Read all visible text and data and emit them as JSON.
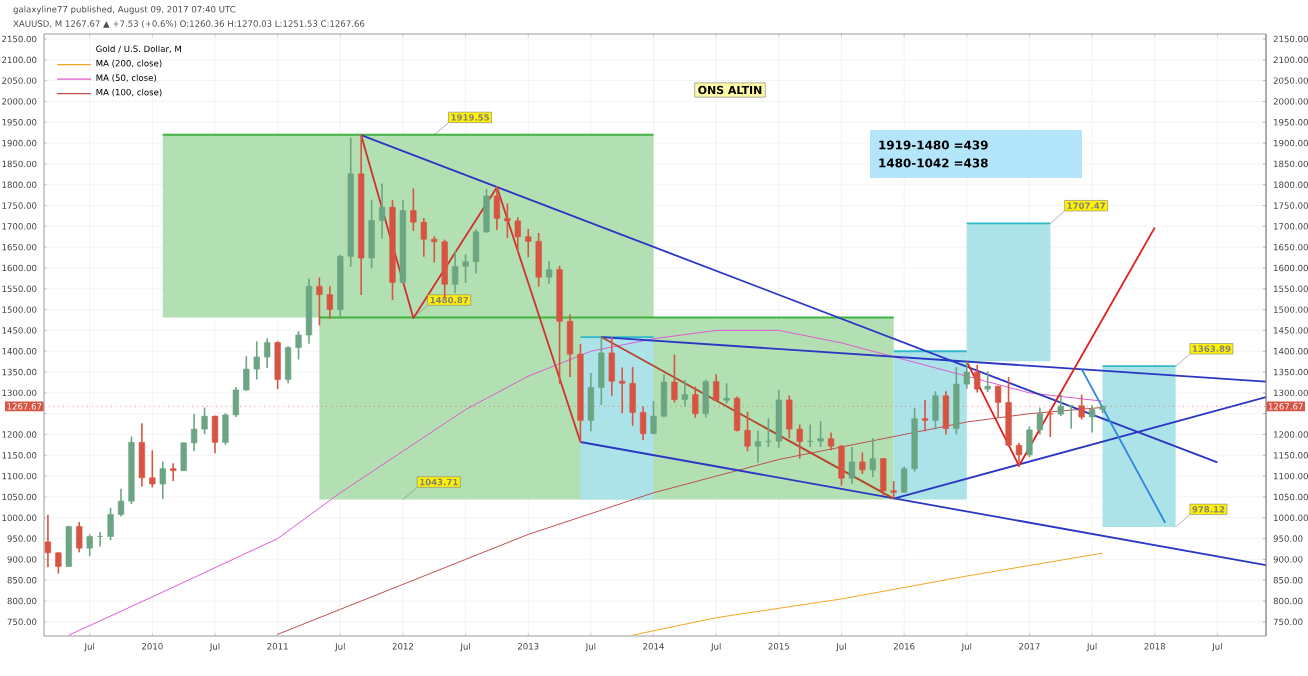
{
  "chart_data": {
    "type": "candlestick",
    "legend_title": "Gold / U.S. Dollar, M",
    "annotations": [
      "galaxyline77 published, August 09, 2017 07:40 UTC",
      "XAUUSD, M 1267.67 ▲ +7.53 (+0.6%) O:1260.36 H:1270.03 L:1251.53 C:1267.66",
      "ONS ALTIN",
      "1919-1480 =439",
      "1480-1042 =438",
      {
        "text": "1919.55",
        "x": "2012-04",
        "y": 1919.55
      },
      {
        "text": "1480.87",
        "x": "2012-02",
        "y": 1480.87
      },
      {
        "text": "1043.71",
        "x": "2012-01",
        "y": 1043.71
      },
      {
        "text": "1707.47",
        "x": "2017-03",
        "y": 1707.47
      },
      {
        "text": "1363.89",
        "x": "2018-03",
        "y": 1363.89
      },
      {
        "text": "978.12",
        "x": "2018-03",
        "y": 978.12
      }
    ],
    "x": [
      "2009-03",
      "2009-04",
      "2009-05",
      "2009-06",
      "2009-07",
      "2009-08",
      "2009-09",
      "2009-10",
      "2009-11",
      "2009-12",
      "2010-01",
      "2010-02",
      "2010-03",
      "2010-04",
      "2010-05",
      "2010-06",
      "2010-07",
      "2010-08",
      "2010-09",
      "2010-10",
      "2010-11",
      "2010-12",
      "2011-01",
      "2011-02",
      "2011-03",
      "2011-04",
      "2011-05",
      "2011-06",
      "2011-07",
      "2011-08",
      "2011-09",
      "2011-10",
      "2011-11",
      "2011-12",
      "2012-01",
      "2012-02",
      "2012-03",
      "2012-04",
      "2012-05",
      "2012-06",
      "2012-07",
      "2012-08",
      "2012-09",
      "2012-10",
      "2012-11",
      "2012-12",
      "2013-01",
      "2013-02",
      "2013-03",
      "2013-04",
      "2013-05",
      "2013-06",
      "2013-07",
      "2013-08",
      "2013-09",
      "2013-10",
      "2013-11",
      "2013-12",
      "2014-01",
      "2014-02",
      "2014-03",
      "2014-04",
      "2014-05",
      "2014-06",
      "2014-07",
      "2014-08",
      "2014-09",
      "2014-10",
      "2014-11",
      "2014-12",
      "2015-01",
      "2015-02",
      "2015-03",
      "2015-04",
      "2015-05",
      "2015-06",
      "2015-07",
      "2015-08",
      "2015-09",
      "2015-10",
      "2015-11",
      "2015-12",
      "2016-01",
      "2016-02",
      "2016-03",
      "2016-04",
      "2016-05",
      "2016-06",
      "2016-07",
      "2016-08",
      "2016-09",
      "2016-10",
      "2016-11",
      "2016-12",
      "2017-01",
      "2017-02",
      "2017-03",
      "2017-04",
      "2017-05",
      "2017-06",
      "2017-07",
      "2017-08"
    ],
    "ohlc": [
      [
        942,
        1007,
        881,
        916
      ],
      [
        916,
        917,
        866,
        883
      ],
      [
        883,
        981,
        883,
        979
      ],
      [
        979,
        990,
        917,
        927
      ],
      [
        927,
        960,
        908,
        955
      ],
      [
        955,
        966,
        931,
        955
      ],
      [
        955,
        1024,
        946,
        1008
      ],
      [
        1008,
        1070,
        1003,
        1040
      ],
      [
        1040,
        1195,
        1033,
        1181
      ],
      [
        1181,
        1227,
        1075,
        1096
      ],
      [
        1096,
        1162,
        1073,
        1081
      ],
      [
        1081,
        1135,
        1045,
        1118
      ],
      [
        1118,
        1131,
        1088,
        1113
      ],
      [
        1113,
        1181,
        1113,
        1180
      ],
      [
        1180,
        1249,
        1160,
        1213
      ],
      [
        1213,
        1265,
        1201,
        1244
      ],
      [
        1244,
        1245,
        1155,
        1181
      ],
      [
        1181,
        1251,
        1175,
        1247
      ],
      [
        1247,
        1314,
        1242,
        1307
      ],
      [
        1307,
        1388,
        1305,
        1357
      ],
      [
        1357,
        1424,
        1332,
        1386
      ],
      [
        1386,
        1431,
        1360,
        1421
      ],
      [
        1421,
        1424,
        1309,
        1332
      ],
      [
        1332,
        1412,
        1323,
        1409
      ],
      [
        1409,
        1448,
        1380,
        1439
      ],
      [
        1439,
        1575,
        1418,
        1556
      ],
      [
        1556,
        1577,
        1462,
        1536
      ],
      [
        1536,
        1556,
        1478,
        1500
      ],
      [
        1500,
        1632,
        1480,
        1628
      ],
      [
        1628,
        1913,
        1603,
        1826
      ],
      [
        1826,
        1921,
        1535,
        1624
      ],
      [
        1624,
        1764,
        1599,
        1714
      ],
      [
        1714,
        1803,
        1670,
        1746
      ],
      [
        1746,
        1763,
        1523,
        1565
      ],
      [
        1565,
        1764,
        1563,
        1738
      ],
      [
        1738,
        1791,
        1689,
        1710
      ],
      [
        1710,
        1720,
        1627,
        1669
      ],
      [
        1669,
        1676,
        1613,
        1663
      ],
      [
        1663,
        1668,
        1527,
        1561
      ],
      [
        1561,
        1641,
        1540,
        1604
      ],
      [
        1604,
        1633,
        1564,
        1615
      ],
      [
        1615,
        1693,
        1587,
        1687
      ],
      [
        1687,
        1790,
        1684,
        1773
      ],
      [
        1773,
        1796,
        1691,
        1719
      ],
      [
        1719,
        1755,
        1672,
        1713
      ],
      [
        1713,
        1722,
        1636,
        1675
      ],
      [
        1675,
        1694,
        1626,
        1664
      ],
      [
        1664,
        1684,
        1555,
        1578
      ],
      [
        1578,
        1617,
        1562,
        1596
      ],
      [
        1596,
        1605,
        1322,
        1472
      ],
      [
        1472,
        1488,
        1338,
        1393
      ],
      [
        1393,
        1417,
        1180,
        1234
      ],
      [
        1234,
        1348,
        1208,
        1313
      ],
      [
        1313,
        1433,
        1271,
        1396
      ],
      [
        1396,
        1434,
        1293,
        1328
      ],
      [
        1328,
        1361,
        1251,
        1323
      ],
      [
        1323,
        1362,
        1221,
        1253
      ],
      [
        1253,
        1267,
        1187,
        1202
      ],
      [
        1202,
        1280,
        1202,
        1244
      ],
      [
        1244,
        1345,
        1241,
        1326
      ],
      [
        1326,
        1392,
        1277,
        1284
      ],
      [
        1284,
        1331,
        1268,
        1296
      ],
      [
        1296,
        1315,
        1240,
        1250
      ],
      [
        1250,
        1332,
        1241,
        1327
      ],
      [
        1327,
        1345,
        1281,
        1282
      ],
      [
        1282,
        1323,
        1274,
        1287
      ],
      [
        1287,
        1291,
        1207,
        1210
      ],
      [
        1210,
        1255,
        1160,
        1172
      ],
      [
        1172,
        1209,
        1132,
        1183
      ],
      [
        1183,
        1239,
        1170,
        1184
      ],
      [
        1184,
        1307,
        1168,
        1283
      ],
      [
        1283,
        1294,
        1191,
        1213
      ],
      [
        1213,
        1224,
        1142,
        1183
      ],
      [
        1183,
        1224,
        1170,
        1184
      ],
      [
        1184,
        1232,
        1170,
        1190
      ],
      [
        1190,
        1205,
        1162,
        1172
      ],
      [
        1172,
        1175,
        1077,
        1095
      ],
      [
        1095,
        1170,
        1081,
        1134
      ],
      [
        1134,
        1157,
        1105,
        1115
      ],
      [
        1115,
        1191,
        1098,
        1142
      ],
      [
        1142,
        1143,
        1053,
        1065
      ],
      [
        1065,
        1088,
        1046,
        1061
      ],
      [
        1061,
        1123,
        1060,
        1118
      ],
      [
        1118,
        1263,
        1111,
        1238
      ],
      [
        1238,
        1283,
        1208,
        1234
      ],
      [
        1234,
        1304,
        1212,
        1293
      ],
      [
        1293,
        1304,
        1200,
        1214
      ],
      [
        1214,
        1362,
        1200,
        1321
      ],
      [
        1321,
        1375,
        1310,
        1350
      ],
      [
        1350,
        1367,
        1301,
        1309
      ],
      [
        1309,
        1352,
        1302,
        1316
      ],
      [
        1316,
        1317,
        1241,
        1277
      ],
      [
        1277,
        1338,
        1171,
        1174
      ],
      [
        1174,
        1180,
        1122,
        1151
      ],
      [
        1151,
        1219,
        1146,
        1211
      ],
      [
        1211,
        1264,
        1200,
        1250
      ],
      [
        1250,
        1261,
        1194,
        1249
      ],
      [
        1249,
        1296,
        1244,
        1268
      ],
      [
        1268,
        1269,
        1214,
        1269
      ],
      [
        1269,
        1296,
        1236,
        1242
      ],
      [
        1242,
        1270,
        1205,
        1260
      ],
      [
        1260.36,
        1270.03,
        1251.53,
        1267.66
      ]
    ],
    "colors": [
      "#d75442",
      "#d75442",
      "#6ba583",
      "#d75442",
      "#6ba583",
      "#6ba583",
      "#6ba583",
      "#6ba583",
      "#6ba583",
      "#d75442",
      "#d75442",
      "#6ba583",
      "#d75442",
      "#6ba583",
      "#6ba583",
      "#6ba583",
      "#d75442",
      "#6ba583",
      "#6ba583",
      "#6ba583",
      "#6ba583",
      "#6ba583",
      "#d75442",
      "#6ba583",
      "#6ba583",
      "#6ba583",
      "#d75442",
      "#d75442",
      "#6ba583",
      "#6ba583",
      "#d75442",
      "#6ba583",
      "#6ba583",
      "#d75442",
      "#6ba583",
      "#d75442",
      "#d75442",
      "#d75442",
      "#d75442",
      "#6ba583",
      "#6ba583",
      "#6ba583",
      "#6ba583",
      "#d75442",
      "#d75442",
      "#d75442",
      "#d75442",
      "#d75442",
      "#6ba583",
      "#d75442",
      "#d75442",
      "#d75442",
      "#6ba583",
      "#6ba583",
      "#d75442",
      "#d75442",
      "#d75442",
      "#d75442",
      "#6ba583",
      "#6ba583",
      "#d75442",
      "#6ba583",
      "#d75442",
      "#6ba583",
      "#d75442",
      "#6ba583",
      "#d75442",
      "#d75442",
      "#6ba583",
      "#6ba583",
      "#6ba583",
      "#d75442",
      "#d75442",
      "#6ba583",
      "#6ba583",
      "#d75442",
      "#d75442",
      "#6ba583",
      "#d75442",
      "#6ba583",
      "#d75442",
      "#d75442",
      "#6ba583",
      "#6ba583",
      "#d75442",
      "#6ba583",
      "#d75442",
      "#6ba583",
      "#6ba583",
      "#d75442",
      "#6ba583",
      "#d75442",
      "#d75442",
      "#d75442",
      "#6ba583",
      "#6ba583",
      "#d75442",
      "#6ba583",
      "#6ba583",
      "#d75442",
      "#6ba583",
      "#6ba583"
    ],
    "series": [
      {
        "type": "line",
        "color": "#3fb23f",
        "x": [
          "2010-02",
          "2014-01"
        ],
        "values": [
          1920,
          1920
        ],
        "upper": [
          1920,
          1920
        ],
        "lower": [
          1481,
          1481
        ]
      },
      {
        "type": "line",
        "color": "#3fb23f",
        "x": [
          "2011-05",
          "2015-12"
        ],
        "values": [
          1481,
          1481
        ],
        "upper": [
          1481,
          1481
        ],
        "lower": [
          1044,
          1044
        ]
      },
      {
        "type": "line",
        "color": "#2fb8c8",
        "x": [
          "2013-06",
          "2014-01"
        ],
        "values": [
          1434,
          1434
        ],
        "upper": [
          1434,
          1434
        ],
        "lower": [
          1044,
          1044
        ]
      },
      {
        "type": "line",
        "color": "#2fb8c8",
        "x": [
          "2015-12",
          "2016-07"
        ],
        "values": [
          1400,
          1400
        ],
        "upper": [
          1400,
          1400
        ],
        "lower": [
          1044,
          1044
        ]
      },
      {
        "type": "line",
        "color": "#2fb8c8",
        "x": [
          "2016-07",
          "2017-03"
        ],
        "values": [
          1707,
          1707
        ],
        "upper": [
          1707,
          1707
        ],
        "lower": [
          1376,
          1376
        ]
      },
      {
        "type": "line",
        "color": "#2fb8c8",
        "x": [
          "2017-08",
          "2018-03"
        ],
        "values": [
          1364,
          1364
        ],
        "upper": [
          1364,
          1364
        ],
        "lower": [
          978,
          978
        ]
      },
      {
        "type": "line",
        "name": "MA (200, close)",
        "color": "#f5a623",
        "x": [
          "2013-11",
          "2014-07",
          "2015-07",
          "2016-07",
          "2017-08"
        ],
        "values": [
          718,
          760,
          805,
          860,
          915
        ]
      },
      {
        "type": "line",
        "name": "MA (50, close)",
        "color": "#e05ad0",
        "x": [
          "2009-05",
          "2010-01",
          "2010-07",
          "2011-01",
          "2011-07",
          "2012-01",
          "2012-07",
          "2013-01",
          "2013-07",
          "2014-01",
          "2014-07",
          "2015-01",
          "2015-07",
          "2016-01",
          "2016-07",
          "2017-01",
          "2017-08"
        ],
        "values": [
          718,
          810,
          880,
          950,
          1060,
          1160,
          1260,
          1340,
          1400,
          1430,
          1450,
          1450,
          1420,
          1380,
          1340,
          1300,
          1280
        ]
      },
      {
        "type": "line",
        "name": "MA (100, close)",
        "color": "#c0504d",
        "x": [
          "2011-01",
          "2011-07",
          "2012-01",
          "2012-07",
          "2013-01",
          "2013-07",
          "2014-01",
          "2014-07",
          "2015-01",
          "2015-07",
          "2016-01",
          "2016-07",
          "2017-01",
          "2017-08"
        ],
        "values": [
          720,
          780,
          840,
          900,
          960,
          1010,
          1060,
          1100,
          1140,
          1170,
          1200,
          1230,
          1250,
          1265
        ]
      },
      {
        "type": "line",
        "color": "#2a36c4",
        "x": [
          "2011-09",
          "2018-07"
        ],
        "values": [
          1919,
          1133
        ]
      },
      {
        "type": "line",
        "color": "#2a36c4",
        "x": [
          "2013-08",
          "2018-11-21"
        ],
        "values": [
          1434,
          1327
        ]
      },
      {
        "type": "line",
        "color": "#2a36c4",
        "x": [
          "2013-06",
          "2018-11-21"
        ],
        "values": [
          1182,
          886
        ]
      },
      {
        "type": "line",
        "color": "#2a36c4",
        "x": [
          "2015-12",
          "2018-11-21"
        ],
        "values": [
          1046,
          1290
        ]
      },
      {
        "type": "line",
        "color": "#d32f2f",
        "x": [
          "2011-09",
          "2012-02",
          "2012-10",
          "2013-06"
        ],
        "values": [
          1919,
          1480,
          1794,
          1182
        ]
      },
      {
        "type": "line",
        "color": "#b5452b",
        "x": [
          "2013-08",
          "2015-12"
        ],
        "values": [
          1434,
          1046
        ]
      },
      {
        "type": "line",
        "color": "#e0201e",
        "x": [
          "2016-07",
          "2016-12",
          "2018-01"
        ],
        "values": [
          1375,
          1125,
          1697
        ]
      },
      {
        "type": "line",
        "color": "#2e86de",
        "x": [
          "2017-06",
          "2018-02"
        ],
        "values": [
          1357,
          988
        ]
      }
    ],
    "ref_lines": [
      {
        "axis": "y",
        "value": 1267.67,
        "label": "1267.67",
        "color": "#d75442",
        "line_style": "dotted"
      }
    ],
    "xlim": [
      "2009-02-20",
      "2018-11-21"
    ],
    "xticks": [
      {
        "value": "2009-07",
        "label": "Jul"
      },
      {
        "value": "2010-01",
        "label": "2010"
      },
      {
        "value": "2010-07",
        "label": "Jul"
      },
      {
        "value": "2011-01",
        "label": "2011"
      },
      {
        "value": "2011-07",
        "label": "Jul"
      },
      {
        "value": "2012-01",
        "label": "2012"
      },
      {
        "value": "2012-07",
        "label": "Jul"
      },
      {
        "value": "2013-01",
        "label": "2013"
      },
      {
        "value": "2013-07",
        "label": "Jul"
      },
      {
        "value": "2014-01",
        "label": "2014"
      },
      {
        "value": "2014-07",
        "label": "Jul"
      },
      {
        "value": "2015-01",
        "label": "2015"
      },
      {
        "value": "2015-07",
        "label": "Jul"
      },
      {
        "value": "2016-01",
        "label": "2016"
      },
      {
        "value": "2016-07",
        "label": "Jul"
      },
      {
        "value": "2017-01",
        "label": "2017"
      },
      {
        "value": "2017-07",
        "label": "Jul"
      },
      {
        "value": "2018-01",
        "label": "2018"
      },
      {
        "value": "2018-07",
        "label": "Jul"
      }
    ],
    "ylim": [
      716,
      2162
    ],
    "yticks": [
      {
        "value": 750,
        "label": "750.00"
      },
      {
        "value": 800,
        "label": "800.00"
      },
      {
        "value": 850,
        "label": "850.00"
      },
      {
        "value": 900,
        "label": "900.00"
      },
      {
        "value": 950,
        "label": "950.00"
      },
      {
        "value": 1000,
        "label": "1000.00"
      },
      {
        "value": 1050,
        "label": "1050.00"
      },
      {
        "value": 1100,
        "label": "1100.00"
      },
      {
        "value": 1150,
        "label": "1150.00"
      },
      {
        "value": 1200,
        "label": "1200.00"
      },
      {
        "value": 1250,
        "label": null
      },
      {
        "value": 1300,
        "label": "1300.00"
      },
      {
        "value": 1350,
        "label": "1350.00"
      },
      {
        "value": 1400,
        "label": "1400.00"
      },
      {
        "value": 1450,
        "label": "1450.00"
      },
      {
        "value": 1500,
        "label": "1500.00"
      },
      {
        "value": 1550,
        "label": "1550.00"
      },
      {
        "value": 1600,
        "label": "1600.00"
      },
      {
        "value": 1650,
        "label": "1650.00"
      },
      {
        "value": 1700,
        "label": "1700.00"
      },
      {
        "value": 1750,
        "label": "1750.00"
      },
      {
        "value": 1800,
        "label": "1800.00"
      },
      {
        "value": 1850,
        "label": "1850.00"
      },
      {
        "value": 1900,
        "label": "1900.00"
      },
      {
        "value": 1950,
        "label": "1950.00"
      },
      {
        "value": 2000,
        "label": "2000.00"
      },
      {
        "value": 2050,
        "label": "2050.00"
      },
      {
        "value": 2100,
        "label": "2100.00"
      },
      {
        "value": 2150,
        "label": "2150.00"
      }
    ],
    "y2lim": [
      716,
      2162
    ],
    "y2ticks": [
      {
        "value": 750,
        "label": "750.00"
      },
      {
        "value": 800,
        "label": "800.00"
      },
      {
        "value": 850,
        "label": "850.00"
      },
      {
        "value": 900,
        "label": "900.00"
      },
      {
        "value": 950,
        "label": "950.00"
      },
      {
        "value": 1000,
        "label": "1000.00"
      },
      {
        "value": 1050,
        "label": "1050.00"
      },
      {
        "value": 1100,
        "label": "1100.00"
      },
      {
        "value": 1150,
        "label": "1150.00"
      },
      {
        "value": 1200,
        "label": "1200.00"
      },
      {
        "value": 1250,
        "label": null
      },
      {
        "value": 1300,
        "label": "1300.00"
      },
      {
        "value": 1350,
        "label": "1350.00"
      },
      {
        "value": 1400,
        "label": "1400.00"
      },
      {
        "value": 1450,
        "label": "1450.00"
      },
      {
        "value": 1500,
        "label": "1500.00"
      },
      {
        "value": 1550,
        "label": "1550.00"
      },
      {
        "value": 1600,
        "label": "1600.00"
      },
      {
        "value": 1650,
        "label": "1650.00"
      },
      {
        "value": 1700,
        "label": "1700.00"
      },
      {
        "value": 1750,
        "label": "1750.00"
      },
      {
        "value": 1800,
        "label": "1800.00"
      },
      {
        "value": 1850,
        "label": "1850.00"
      },
      {
        "value": 1900,
        "label": "1900.00"
      },
      {
        "value": 1950,
        "label": "1950.00"
      },
      {
        "value": 2000,
        "label": "2000.00"
      },
      {
        "value": 2050,
        "label": "2050.00"
      },
      {
        "value": 2100,
        "label": "2100.00"
      },
      {
        "value": 2150,
        "label": "2150.00"
      }
    ],
    "grid": true,
    "legend": "top left",
    "marker": "none",
    "line_style": "solid"
  }
}
